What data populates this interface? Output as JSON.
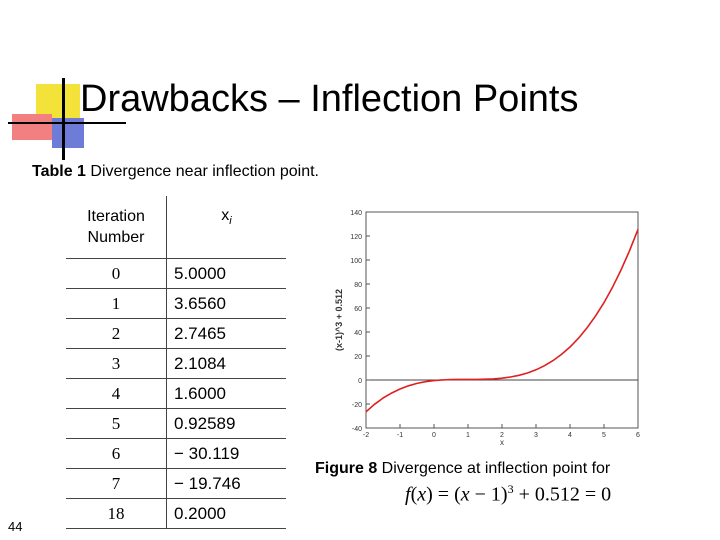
{
  "slide": {
    "title": "Drawbacks – Inflection Points",
    "page_number": "44"
  },
  "table": {
    "caption_label": "Table 1",
    "caption_text": " Divergence near inflection point.",
    "header_iteration": "Iteration Number",
    "header_x": "x",
    "header_x_sub": "i",
    "rows": [
      {
        "iter": "0",
        "x": "5.0000"
      },
      {
        "iter": "1",
        "x": "3.6560"
      },
      {
        "iter": "2",
        "x": "2.7465"
      },
      {
        "iter": "3",
        "x": "2.1084"
      },
      {
        "iter": "4",
        "x": "1.6000"
      },
      {
        "iter": "5",
        "x": "0.92589"
      },
      {
        "iter": "6",
        "x": "− 30.119"
      },
      {
        "iter": "7",
        "x": "− 19.746"
      },
      {
        "iter": "18",
        "x": "0.2000"
      }
    ]
  },
  "figure": {
    "caption_label": "Figure 8",
    "caption_text": " Divergence at inflection point for",
    "formula": {
      "f": "f",
      "x": "x",
      "mid": " = (",
      "x2": "x",
      "tail": " − 1)",
      "exp": "3",
      "end": " + 0.512 = 0",
      "open": "(",
      "close": ")"
    }
  },
  "chart_data": {
    "type": "line",
    "function": "(x-1)^3 + 0.512",
    "x": [
      -2,
      -1.75,
      -1.5,
      -1.25,
      -1,
      -0.75,
      -0.5,
      -0.25,
      0,
      0.25,
      0.5,
      0.75,
      1,
      1.25,
      1.5,
      1.75,
      2,
      2.25,
      2.5,
      2.75,
      3,
      3.25,
      3.5,
      3.75,
      4,
      4.25,
      4.5,
      4.75,
      5,
      5.25,
      5.5,
      5.75,
      6
    ],
    "y": [
      -26.49,
      -20.28,
      -15.11,
      -10.88,
      -7.49,
      -4.85,
      -2.86,
      -1.44,
      -0.49,
      0.09,
      0.39,
      0.5,
      0.51,
      0.53,
      0.64,
      0.93,
      1.51,
      2.47,
      3.89,
      5.87,
      8.51,
      11.9,
      16.14,
      21.31,
      27.51,
      34.84,
      43.39,
      53.24,
      64.51,
      77.27,
      91.64,
      107.7,
      125.51
    ],
    "xlabel": "x",
    "ylabel": "(x-1)^3 + 0.512",
    "xlim": [
      -2,
      6
    ],
    "ylim": [
      -40,
      140
    ],
    "xticks": [
      -2,
      -1,
      0,
      1,
      2,
      3,
      4,
      5,
      6
    ],
    "yticks": [
      -40,
      -20,
      0,
      20,
      40,
      60,
      80,
      100,
      120,
      140
    ],
    "series_color": "#e02020"
  }
}
